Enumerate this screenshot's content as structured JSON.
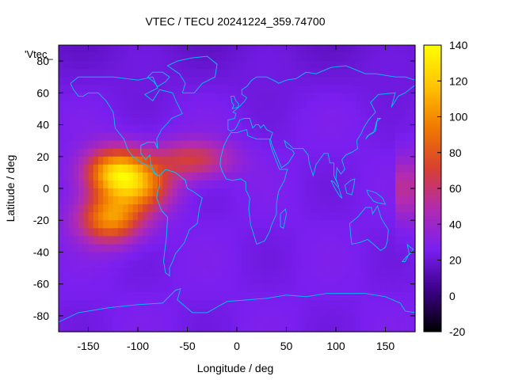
{
  "chart_data": {
    "type": "heatmap",
    "title": "VTEC / TECU 20241224_359.74700",
    "xlabel": "Longitude / deg",
    "ylabel": "Latitude / deg",
    "legend_key": "'Vtec_",
    "xlim": [
      -180,
      180
    ],
    "ylim": [
      -90,
      90
    ],
    "x_ticks": [
      -150,
      -100,
      -50,
      0,
      50,
      100,
      150
    ],
    "y_ticks": [
      -80,
      -60,
      -40,
      -20,
      0,
      20,
      40,
      60,
      80
    ],
    "x_tick_labels": [
      "-150",
      "-100",
      "-50",
      "0",
      "50",
      "100",
      "150"
    ],
    "y_tick_labels": [
      "-80",
      "-60",
      "-40",
      "-20",
      "0",
      "20",
      "40",
      "60",
      "80"
    ],
    "colorbar": {
      "range": [
        -20,
        140
      ],
      "ticks": [
        -20,
        0,
        20,
        40,
        60,
        80,
        100,
        120,
        140
      ],
      "tick_labels": [
        "-20",
        "0",
        "20",
        "40",
        "60",
        "80",
        "100",
        "120",
        "140"
      ],
      "palette": [
        "#000000",
        "#3b0087",
        "#7a1ff0",
        "#b22bb0",
        "#d8402f",
        "#f07a00",
        "#ffc300",
        "#ffff00"
      ]
    },
    "background_level": 25,
    "features": [
      {
        "lon": -122,
        "lat": 10,
        "peak": 115
      },
      {
        "lon": -128,
        "lat": -19,
        "peak": 100
      },
      {
        "lon": -95,
        "lat": 0,
        "peak": 75
      },
      {
        "lon": -45,
        "lat": 18,
        "peak": 68
      }
    ],
    "grid": false,
    "coastline_color": "#00c8ff"
  }
}
